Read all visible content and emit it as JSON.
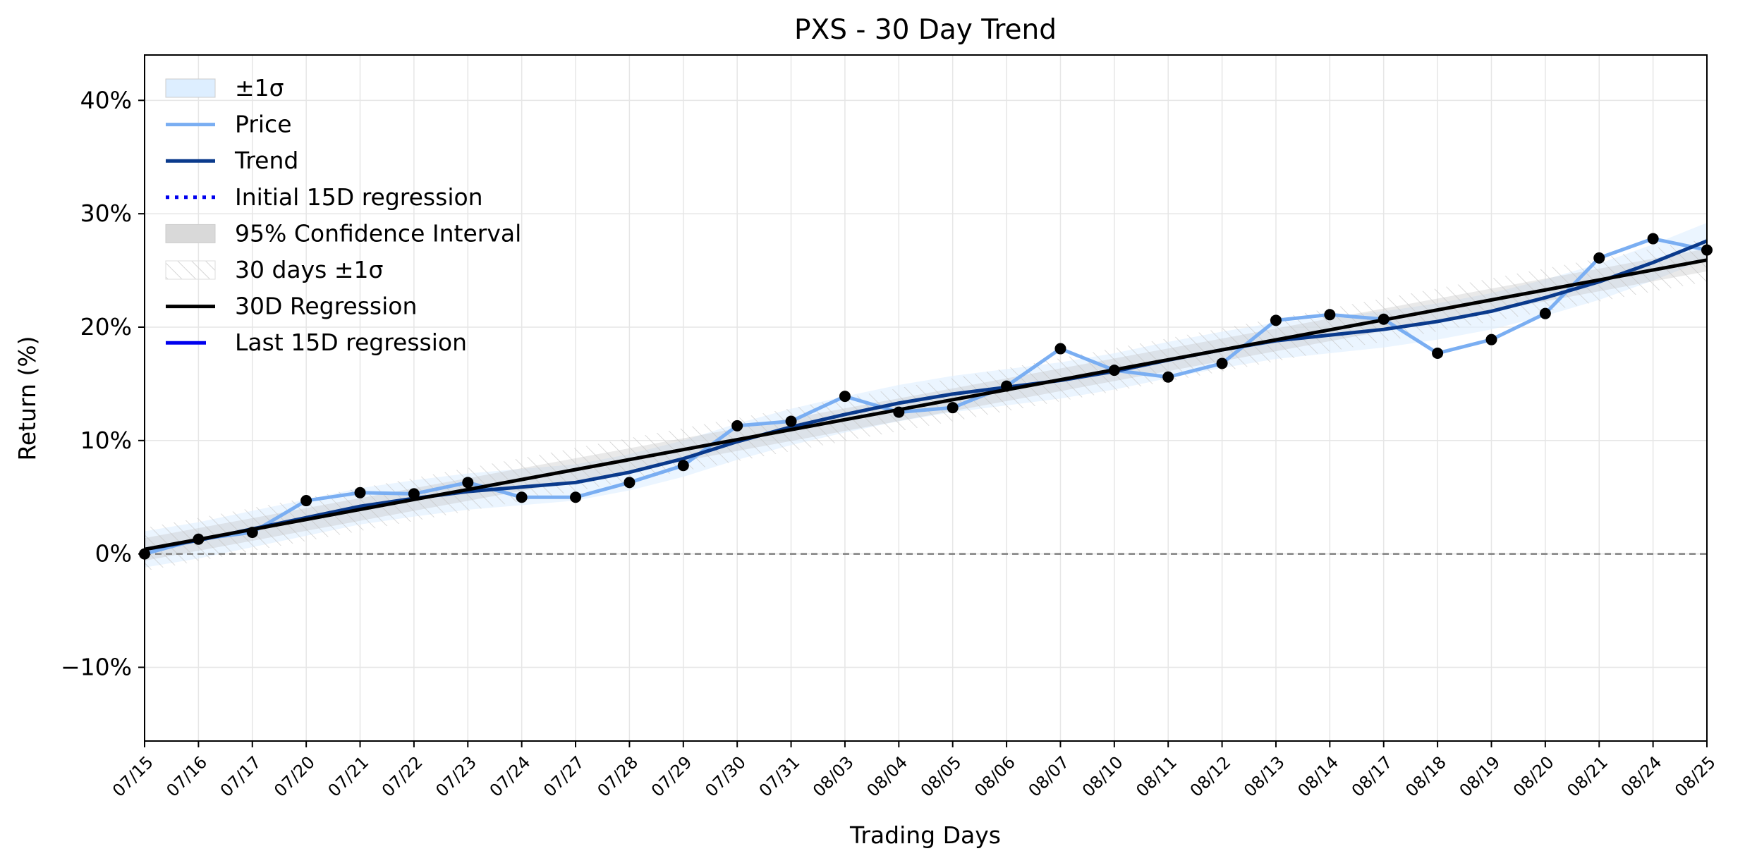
{
  "chart_data": {
    "type": "line",
    "title": "PXS - 30 Day Trend",
    "xlabel": "Trading Days",
    "ylabel": "Return (%)",
    "ylim": [
      -16.5,
      44
    ],
    "yticks": [
      -10,
      0,
      10,
      20,
      30,
      40
    ],
    "ytick_labels": [
      "−10%",
      "0%",
      "10%",
      "20%",
      "30%",
      "40%"
    ],
    "grid": true,
    "legend_position": "upper-left",
    "zero_line": 0,
    "categories": [
      "07/15",
      "07/16",
      "07/17",
      "07/20",
      "07/21",
      "07/22",
      "07/23",
      "07/24",
      "07/27",
      "07/28",
      "07/29",
      "07/30",
      "07/31",
      "08/03",
      "08/04",
      "08/05",
      "08/06",
      "08/07",
      "08/10",
      "08/11",
      "08/12",
      "08/13",
      "08/14",
      "08/17",
      "08/18",
      "08/19",
      "08/20",
      "08/21",
      "08/24",
      "08/25"
    ],
    "series": [
      {
        "name": "Price",
        "color": "#7aaef2",
        "marker_color": "#000000",
        "values": [
          0.0,
          1.3,
          1.9,
          4.7,
          5.4,
          5.3,
          6.3,
          5.0,
          5.0,
          6.3,
          7.8,
          11.3,
          11.7,
          13.9,
          12.5,
          12.9,
          14.8,
          18.1,
          16.2,
          15.6,
          16.8,
          20.6,
          21.1,
          20.7,
          17.7,
          18.9,
          21.2,
          26.1,
          27.8,
          26.8
        ]
      },
      {
        "name": "Trend",
        "color": "#0a3a8c",
        "values": [
          0.4,
          1.2,
          2.2,
          3.2,
          4.2,
          4.9,
          5.5,
          5.9,
          6.3,
          7.2,
          8.4,
          9.9,
          11.2,
          12.3,
          13.3,
          14.1,
          14.7,
          15.3,
          16.1,
          17.1,
          18.0,
          18.8,
          19.3,
          19.8,
          20.5,
          21.4,
          22.6,
          24.0,
          25.7,
          27.6
        ]
      },
      {
        "name": "30D Regression",
        "color": "#000000",
        "values": [
          0.4,
          1.28,
          2.16,
          3.04,
          3.92,
          4.8,
          5.68,
          6.56,
          7.44,
          8.32,
          9.2,
          10.08,
          10.96,
          11.84,
          12.72,
          13.6,
          14.48,
          15.36,
          16.24,
          17.12,
          18.0,
          18.88,
          19.76,
          20.64,
          21.52,
          22.4,
          23.28,
          24.16,
          25.04,
          25.92
        ]
      }
    ],
    "legend": [
      {
        "label": "±1σ",
        "kind": "patch",
        "color": "#ddeeff"
      },
      {
        "label": "Price",
        "kind": "line",
        "color": "#7aaef2"
      },
      {
        "label": "Trend",
        "kind": "line",
        "color": "#0a3a8c"
      },
      {
        "label": "Initial 15D regression",
        "kind": "dotted",
        "color": "#0000ee"
      },
      {
        "label": "95% Confidence Interval",
        "kind": "patch",
        "color": "#d9d9d9"
      },
      {
        "label": "30 days ±1σ",
        "kind": "hatch",
        "color": "#eeeeee"
      },
      {
        "label": "30D Regression",
        "kind": "line",
        "color": "#000000"
      },
      {
        "label": "Last 15D regression",
        "kind": "dashed",
        "color": "#0000ee"
      }
    ]
  }
}
